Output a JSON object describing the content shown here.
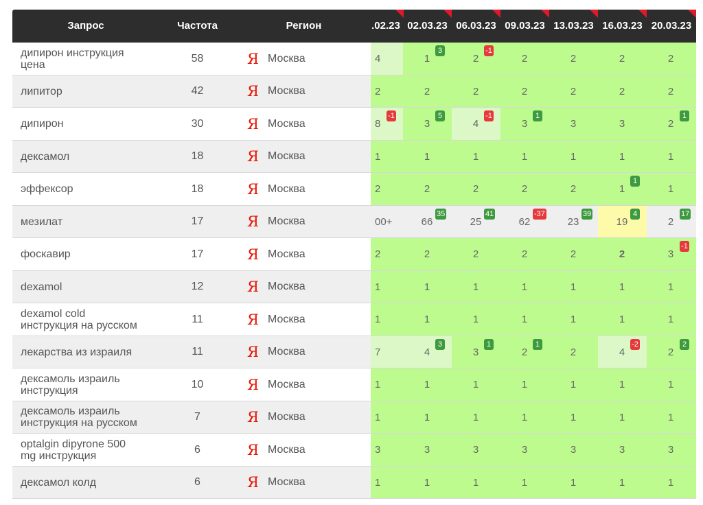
{
  "table": {
    "columns": [
      "Запрос",
      "Частота",
      "Регион",
      ".02.23",
      "02.03.23",
      "06.03.23",
      "09.03.23",
      "13.03.23",
      "16.03.23",
      "20.03.23"
    ],
    "rows": [
      {
        "query": "дипирон инструкция цена",
        "frequency": "58",
        "engine": "Я",
        "region": "Москва",
        "cells": [
          {
            "value": "4",
            "color": "#dcf8c6"
          },
          {
            "value": "1",
            "change": "3"
          },
          {
            "value": "2",
            "change": "-1"
          },
          {
            "value": "2"
          },
          {
            "value": "2"
          },
          {
            "value": "2"
          },
          {
            "value": "2"
          }
        ]
      },
      {
        "query": "липитор",
        "frequency": "42",
        "engine": "Я",
        "region": "Москва",
        "cells": [
          {
            "value": "2"
          },
          {
            "value": "2"
          },
          {
            "value": "2"
          },
          {
            "value": "2"
          },
          {
            "value": "2"
          },
          {
            "value": "2"
          },
          {
            "value": "2"
          }
        ]
      },
      {
        "query": "дипирон",
        "frequency": "30",
        "engine": "Я",
        "region": "Москва",
        "cells": [
          {
            "value": "8",
            "change": "-1",
            "color": "#dcf8c6"
          },
          {
            "value": "3",
            "change": "5"
          },
          {
            "value": "4",
            "change": "-1",
            "color": "#dcf8c6"
          },
          {
            "value": "3",
            "change": "1"
          },
          {
            "value": "3"
          },
          {
            "value": "3"
          },
          {
            "value": "2",
            "change": "1"
          }
        ]
      },
      {
        "query": "дексамол",
        "frequency": "18",
        "engine": "Я",
        "region": "Москва",
        "cells": [
          {
            "value": "1"
          },
          {
            "value": "1"
          },
          {
            "value": "1"
          },
          {
            "value": "1"
          },
          {
            "value": "1"
          },
          {
            "value": "1"
          },
          {
            "value": "1"
          }
        ]
      },
      {
        "query": "эффексор",
        "frequency": "18",
        "engine": "Я",
        "region": "Москва",
        "cells": [
          {
            "value": "2"
          },
          {
            "value": "2"
          },
          {
            "value": "2"
          },
          {
            "value": "2"
          },
          {
            "value": "2"
          },
          {
            "value": "1",
            "change": "1"
          },
          {
            "value": "1"
          }
        ]
      },
      {
        "query": "мезилат",
        "frequency": "17",
        "engine": "Я",
        "region": "Москва",
        "cells": [
          {
            "value": "00+",
            "color": "#efefef"
          },
          {
            "value": "66",
            "change": "35",
            "color": "#efefef"
          },
          {
            "value": "25",
            "change": "41",
            "color": "#efefef"
          },
          {
            "value": "62",
            "change": "-37",
            "color": "#efefef"
          },
          {
            "value": "23",
            "change": "39",
            "color": "#efefef"
          },
          {
            "value": "19",
            "change": "4",
            "color": "#fdfaaa"
          },
          {
            "value": "2",
            "change": "17",
            "color": "#efefef"
          }
        ]
      },
      {
        "query": "фоскавир",
        "frequency": "17",
        "engine": "Я",
        "region": "Москва",
        "cells": [
          {
            "value": "2"
          },
          {
            "value": "2"
          },
          {
            "value": "2"
          },
          {
            "value": "2"
          },
          {
            "value": "2"
          },
          {
            "value": "2",
            "bold": true
          },
          {
            "value": "3",
            "change": "-1"
          }
        ]
      },
      {
        "query": "dexamol",
        "frequency": "12",
        "engine": "Я",
        "region": "Москва",
        "cells": [
          {
            "value": "1"
          },
          {
            "value": "1"
          },
          {
            "value": "1"
          },
          {
            "value": "1"
          },
          {
            "value": "1"
          },
          {
            "value": "1"
          },
          {
            "value": "1"
          }
        ]
      },
      {
        "query": "dexamol cold инструкция на русском",
        "frequency": "11",
        "engine": "Я",
        "region": "Москва",
        "cells": [
          {
            "value": "1"
          },
          {
            "value": "1"
          },
          {
            "value": "1"
          },
          {
            "value": "1"
          },
          {
            "value": "1"
          },
          {
            "value": "1"
          },
          {
            "value": "1"
          }
        ]
      },
      {
        "query": "лекарства из израиля",
        "frequency": "11",
        "engine": "Я",
        "region": "Москва",
        "cells": [
          {
            "value": "7",
            "color": "#dcf8c6"
          },
          {
            "value": "4",
            "change": "3",
            "color": "#dcf8c6"
          },
          {
            "value": "3",
            "change": "1"
          },
          {
            "value": "2",
            "change": "1"
          },
          {
            "value": "2"
          },
          {
            "value": "4",
            "change": "-2",
            "color": "#dcf8c6"
          },
          {
            "value": "2",
            "change": "2"
          }
        ]
      },
      {
        "query": "дексамоль израиль инструкция",
        "frequency": "10",
        "engine": "Я",
        "region": "Москва",
        "cells": [
          {
            "value": "1"
          },
          {
            "value": "1"
          },
          {
            "value": "1"
          },
          {
            "value": "1"
          },
          {
            "value": "1"
          },
          {
            "value": "1"
          },
          {
            "value": "1"
          }
        ]
      },
      {
        "query": "дексамоль израиль инструкция на русском",
        "frequency": "7",
        "engine": "Я",
        "region": "Москва",
        "cells": [
          {
            "value": "1"
          },
          {
            "value": "1"
          },
          {
            "value": "1"
          },
          {
            "value": "1"
          },
          {
            "value": "1"
          },
          {
            "value": "1"
          },
          {
            "value": "1"
          }
        ]
      },
      {
        "query": "optalgin dipyrone 500 mg инструкция",
        "frequency": "6",
        "engine": "Я",
        "region": "Москва",
        "cells": [
          {
            "value": "3"
          },
          {
            "value": "3"
          },
          {
            "value": "3"
          },
          {
            "value": "3"
          },
          {
            "value": "3"
          },
          {
            "value": "3"
          },
          {
            "value": "3"
          }
        ]
      },
      {
        "query": "дексамол колд",
        "frequency": "6",
        "engine": "Я",
        "region": "Москва",
        "cells": [
          {
            "value": "1"
          },
          {
            "value": "1"
          },
          {
            "value": "1"
          },
          {
            "value": "1"
          },
          {
            "value": "1"
          },
          {
            "value": "1"
          },
          {
            "value": "1"
          }
        ]
      }
    ]
  }
}
